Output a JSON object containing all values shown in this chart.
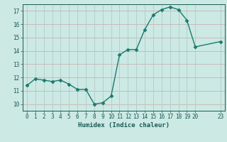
{
  "x": [
    0,
    1,
    2,
    3,
    4,
    5,
    6,
    7,
    8,
    9,
    10,
    11,
    12,
    13,
    14,
    15,
    16,
    17,
    18,
    19,
    20,
    23
  ],
  "y": [
    11.4,
    11.9,
    11.8,
    11.7,
    11.8,
    11.5,
    11.1,
    11.1,
    10.0,
    10.1,
    10.6,
    13.7,
    14.1,
    14.1,
    15.6,
    16.7,
    17.1,
    17.3,
    17.1,
    16.3,
    14.3,
    14.7
  ],
  "line_color": "#1a7a6e",
  "marker_color": "#1a7a6e",
  "bg_color": "#cce9e4",
  "xlabel": "Humidex (Indice chaleur)",
  "xlim": [
    -0.5,
    23.5
  ],
  "ylim": [
    9.5,
    17.5
  ],
  "yticks": [
    10,
    11,
    12,
    13,
    14,
    15,
    16,
    17
  ],
  "xticks": [
    0,
    1,
    2,
    3,
    4,
    5,
    6,
    7,
    8,
    9,
    10,
    11,
    12,
    13,
    14,
    15,
    16,
    17,
    18,
    19,
    20,
    23
  ],
  "font_color": "#1a5a54",
  "linewidth": 1.0,
  "markersize": 2.5,
  "h_grid_color": "#c8a8a8",
  "v_grid_color": "#a8c8c4"
}
